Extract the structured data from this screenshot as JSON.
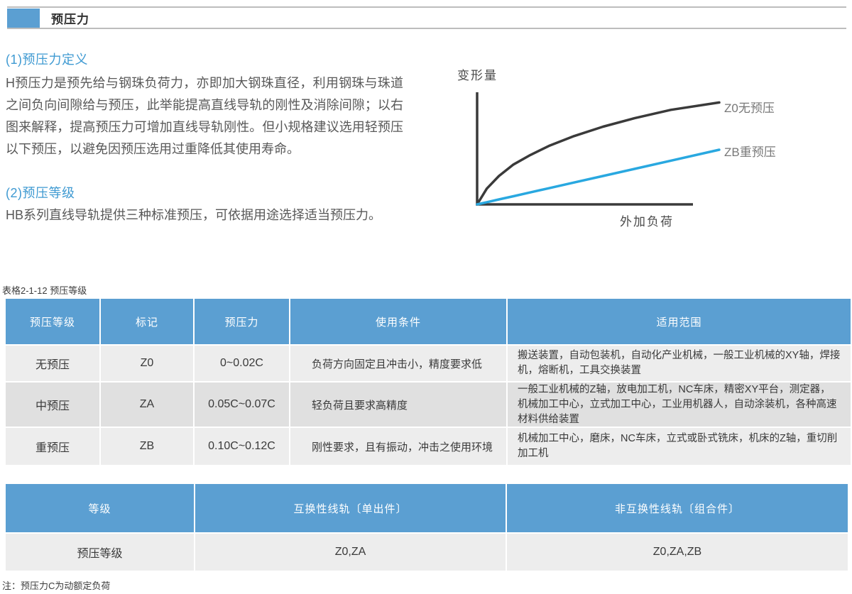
{
  "page": {
    "title": "预压力",
    "note": "注：预压力C为动额定负荷"
  },
  "sections": {
    "definition": {
      "heading": "(1)预压力定义",
      "body": "H预压力是预先给与钢珠负荷力，亦即加大钢珠直径，利用钢珠与珠道之间负向间隙给与预压，此举能提高直线导轨的刚性及消除间隙；以右图来解释，提高预压力可增加直线导轨刚性。但小规格建议选用轻预压以下预压，以避免因预压选用过重降低其使用寿命。"
    },
    "grades": {
      "heading": "(2)预压等级",
      "body": "HB系列直线导轨提供三种标准预压，可依据用途选择适当预压力。"
    }
  },
  "chart_data": {
    "type": "line",
    "title": "",
    "xlabel": "外加负荷",
    "ylabel": "变形量",
    "legend_position": "right-of-line-ends",
    "grid": false,
    "axis_ticks": "none (qualitative diagram)",
    "xlim": [
      0,
      1
    ],
    "ylim": [
      0,
      1
    ],
    "x": [
      0,
      0.04,
      0.09,
      0.15,
      0.22,
      0.3,
      0.4,
      0.52,
      0.65,
      0.8,
      1.0
    ],
    "series": [
      {
        "name": "Z0无预压",
        "color": "#3a3a3a",
        "values": [
          0,
          0.15,
          0.27,
          0.38,
          0.47,
          0.56,
          0.65,
          0.74,
          0.82,
          0.9,
          0.97
        ],
        "shape": "concave-down curve: deformation rises steeply then flattens"
      },
      {
        "name": "ZB重预压",
        "color": "#29a8e0",
        "values": [
          0,
          0.021,
          0.047,
          0.078,
          0.114,
          0.156,
          0.208,
          0.27,
          0.338,
          0.416,
          0.52
        ],
        "shape": "straight line: lower deformation under load"
      }
    ]
  },
  "table1": {
    "caption": "表格2-1-12  预压等级",
    "headers": [
      "预压等级",
      "标记",
      "预压力",
      "使用条件",
      "适用范围"
    ],
    "rows": [
      [
        "无预压",
        "Z0",
        "0~0.02C",
        "负荷方向固定且冲击小，精度要求低",
        "搬送装置，自动包装机，自动化产业机械，一般工业机械的XY轴，焊接机，熔断机，工具交换装置"
      ],
      [
        "中预压",
        "ZA",
        "0.05C~0.07C",
        "轻负荷且要求高精度",
        "一般工业机械的Z轴，放电加工机，NC车床，精密XY平台，测定器，机械加工中心，立式加工中心，工业用机器人，自动涂装机，各种高速材料供给装置"
      ],
      [
        "重预压",
        "ZB",
        "0.10C~0.12C",
        "刚性要求，且有振动，冲击之使用环境",
        "机械加工中心，磨床，NC车床，立式或卧式铣床，机床的Z轴，重切削加工机"
      ]
    ]
  },
  "table2": {
    "headers": [
      "等级",
      "互换性线轨〔单出件〕",
      "非互换性线轨〔组合件〕"
    ],
    "rows": [
      [
        "预压等级",
        "Z0,ZA",
        "Z0,ZA,ZB"
      ]
    ]
  },
  "colors": {
    "accent_blue": "#5b9fd2",
    "heading_blue": "#3f9ad2",
    "chart_line_blue": "#29a8e0",
    "row_light": "#ededed",
    "row_dark": "#e0e0e0"
  }
}
